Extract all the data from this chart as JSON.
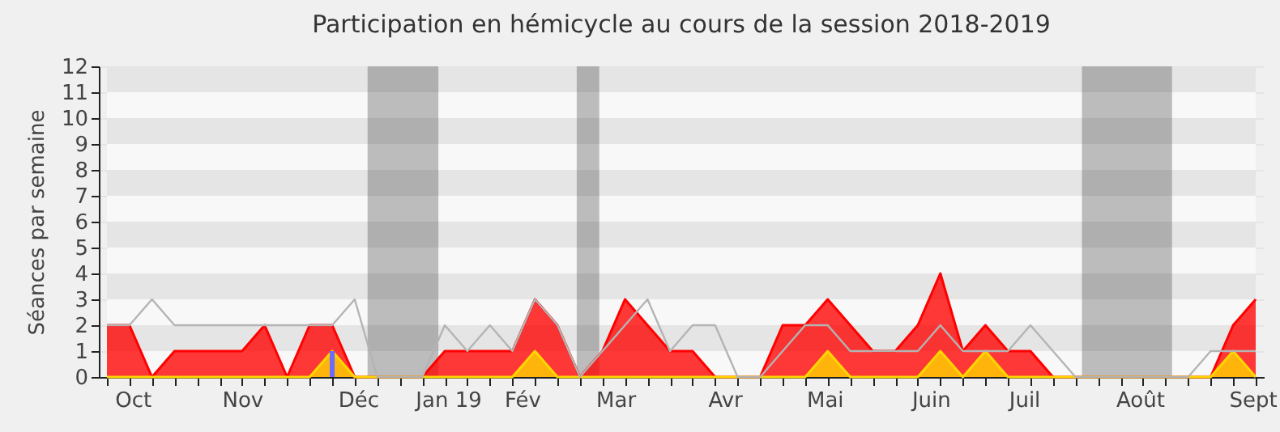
{
  "chart_data": {
    "type": "area",
    "title": "Participation en hémicycle au cours de la session 2018-2019",
    "ylabel": "Séances par semaine",
    "x": [
      "2018-09-24",
      "2018-10-01",
      "2018-10-08",
      "2018-10-15",
      "2018-10-22",
      "2018-10-29",
      "2018-11-05",
      "2018-11-12",
      "2018-11-19",
      "2018-11-26",
      "2018-12-03",
      "2018-12-10",
      "2018-12-17",
      "2018-12-24",
      "2018-12-31",
      "2019-01-07",
      "2019-01-14",
      "2019-01-21",
      "2019-01-28",
      "2019-02-04",
      "2019-02-11",
      "2019-02-18",
      "2019-02-25",
      "2019-03-04",
      "2019-03-11",
      "2019-03-18",
      "2019-03-25",
      "2019-04-01",
      "2019-04-08",
      "2019-04-15",
      "2019-04-22",
      "2019-04-29",
      "2019-05-06",
      "2019-05-13",
      "2019-05-20",
      "2019-05-27",
      "2019-06-03",
      "2019-06-10",
      "2019-06-17",
      "2019-06-24",
      "2019-07-01",
      "2019-07-08",
      "2019-07-15",
      "2019-07-22",
      "2019-07-29",
      "2019-08-05",
      "2019-08-12",
      "2019-08-19",
      "2019-08-26",
      "2019-09-02",
      "2019-09-09",
      "2019-09-16"
    ],
    "series": [
      {
        "color": "#ff0000",
        "values": [
          2,
          2,
          0,
          1,
          1,
          1,
          1,
          2,
          0,
          2,
          2,
          0,
          0,
          0,
          0,
          1,
          1,
          1,
          1,
          3,
          2,
          0,
          1,
          3,
          2,
          1,
          1,
          0,
          0,
          0,
          2,
          2,
          3,
          2,
          1,
          1,
          2,
          4,
          1,
          2,
          1,
          1,
          0,
          0,
          0,
          0,
          0,
          0,
          0,
          0,
          2,
          3
        ]
      },
      {
        "color": "#ffd700",
        "values": [
          0,
          0,
          0,
          0,
          0,
          0,
          0,
          0,
          0,
          0,
          1,
          0,
          0,
          0,
          0,
          0,
          0,
          0,
          0,
          1,
          0,
          0,
          0,
          0,
          0,
          0,
          0,
          0,
          0,
          0,
          0,
          0,
          1,
          0,
          0,
          0,
          0,
          1,
          0,
          1,
          0,
          0,
          0,
          0,
          0,
          0,
          0,
          0,
          0,
          0,
          1,
          0
        ]
      },
      {
        "type": "line",
        "color": "#b4b4b4",
        "values": [
          2,
          2,
          3,
          2,
          2,
          2,
          2,
          2,
          2,
          2,
          2,
          3,
          0,
          0,
          0,
          2,
          1,
          2,
          1,
          3,
          2,
          0,
          1,
          2,
          3,
          1,
          2,
          2,
          0,
          0,
          1,
          2,
          2,
          1,
          1,
          1,
          1,
          2,
          1,
          1,
          1,
          2,
          1,
          0,
          0,
          0,
          0,
          0,
          0,
          1,
          1,
          1
        ]
      },
      {
        "type": "bar",
        "color": "#6b6bff",
        "values": [
          null,
          null,
          null,
          null,
          null,
          null,
          null,
          null,
          null,
          null,
          1,
          null,
          null,
          null,
          null,
          null,
          null,
          null,
          null,
          null,
          null,
          null,
          null,
          null,
          null,
          null,
          null,
          null,
          null,
          null,
          null,
          null,
          null,
          null,
          null,
          null,
          null,
          null,
          null,
          null,
          null,
          null,
          null,
          null,
          null,
          null,
          null,
          null,
          null,
          null,
          null,
          null
        ]
      }
    ],
    "xlim": [
      "2018-09-24",
      "2019-09-16"
    ],
    "xticks": [
      {
        "value": "2018-09-24",
        "label": null
      },
      {
        "value": "2018-10-01",
        "label": null
      },
      {
        "value": "2018-10-08",
        "label": null
      },
      {
        "value": "2018-10-15",
        "label": null
      },
      {
        "value": "2018-10-22",
        "label": null
      },
      {
        "value": "2018-10-29",
        "label": null
      },
      {
        "value": "2018-11-05",
        "label": null
      },
      {
        "value": "2018-11-12",
        "label": null
      },
      {
        "value": "2018-11-19",
        "label": null
      },
      {
        "value": "2018-11-26",
        "label": null
      },
      {
        "value": "2018-12-03",
        "label": null
      },
      {
        "value": "2018-12-10",
        "label": null
      },
      {
        "value": "2018-12-17",
        "label": null
      },
      {
        "value": "2018-12-24",
        "label": null
      },
      {
        "value": "2018-12-31",
        "label": null
      },
      {
        "value": "2019-01-07",
        "label": null
      },
      {
        "value": "2019-01-14",
        "label": null
      },
      {
        "value": "2019-01-21",
        "label": null
      },
      {
        "value": "2019-01-28",
        "label": null
      },
      {
        "value": "2019-02-04",
        "label": null
      },
      {
        "value": "2019-02-11",
        "label": null
      },
      {
        "value": "2019-02-18",
        "label": null
      },
      {
        "value": "2019-02-25",
        "label": null
      },
      {
        "value": "2019-03-04",
        "label": null
      },
      {
        "value": "2019-03-11",
        "label": null
      },
      {
        "value": "2019-03-18",
        "label": null
      },
      {
        "value": "2019-03-25",
        "label": null
      },
      {
        "value": "2019-04-01",
        "label": null
      },
      {
        "value": "2019-04-08",
        "label": null
      },
      {
        "value": "2019-04-15",
        "label": null
      },
      {
        "value": "2019-04-22",
        "label": null
      },
      {
        "value": "2019-04-29",
        "label": null
      },
      {
        "value": "2019-05-06",
        "label": null
      },
      {
        "value": "2019-05-13",
        "label": null
      },
      {
        "value": "2019-05-20",
        "label": null
      },
      {
        "value": "2019-05-27",
        "label": null
      },
      {
        "value": "2019-06-03",
        "label": null
      },
      {
        "value": "2019-06-10",
        "label": null
      },
      {
        "value": "2019-06-17",
        "label": null
      },
      {
        "value": "2019-06-24",
        "label": null
      },
      {
        "value": "2019-07-01",
        "label": null
      },
      {
        "value": "2019-07-08",
        "label": null
      },
      {
        "value": "2019-07-15",
        "label": null
      },
      {
        "value": "2019-07-22",
        "label": null
      },
      {
        "value": "2019-07-29",
        "label": null
      },
      {
        "value": "2019-08-05",
        "label": null
      },
      {
        "value": "2019-08-12",
        "label": null
      },
      {
        "value": "2019-08-19",
        "label": null
      },
      {
        "value": "2019-08-26",
        "label": null
      },
      {
        "value": "2019-09-02",
        "label": null
      },
      {
        "value": "2019-09-09",
        "label": null
      },
      {
        "value": "2019-09-16",
        "label": null
      },
      {
        "value": "2018-10-02",
        "label": "Oct"
      },
      {
        "value": "2018-11-05",
        "label": "Nov"
      },
      {
        "value": "2018-12-11",
        "label": "Déc"
      },
      {
        "value": "2019-01-08",
        "label": "Jan 19"
      },
      {
        "value": "2019-01-31",
        "label": "Fév"
      },
      {
        "value": "2019-03-01",
        "label": "Mar"
      },
      {
        "value": "2019-04-04",
        "label": "Avr"
      },
      {
        "value": "2019-05-05",
        "label": "Mai"
      },
      {
        "value": "2019-06-07",
        "label": "Juin"
      },
      {
        "value": "2019-07-06",
        "label": "Juil"
      },
      {
        "value": "2019-08-11",
        "label": "Août"
      },
      {
        "value": "2019-09-15",
        "label": "Sept"
      }
    ],
    "ylim": [
      0,
      12
    ],
    "yticks": [
      0,
      1,
      2,
      3,
      4,
      5,
      6,
      7,
      8,
      9,
      10,
      11,
      12
    ],
    "grid": "y",
    "bands": [
      {
        "axis": "x",
        "from": "2018-12-14",
        "to": "2019-01-05",
        "color": "#3d3d3d"
      },
      {
        "axis": "x",
        "from": "2019-02-17",
        "to": "2019-02-24",
        "color": "#3d3d3d"
      },
      {
        "axis": "x",
        "from": "2019-07-24",
        "to": "2019-08-21",
        "color": "#3d3d3d"
      }
    ]
  }
}
